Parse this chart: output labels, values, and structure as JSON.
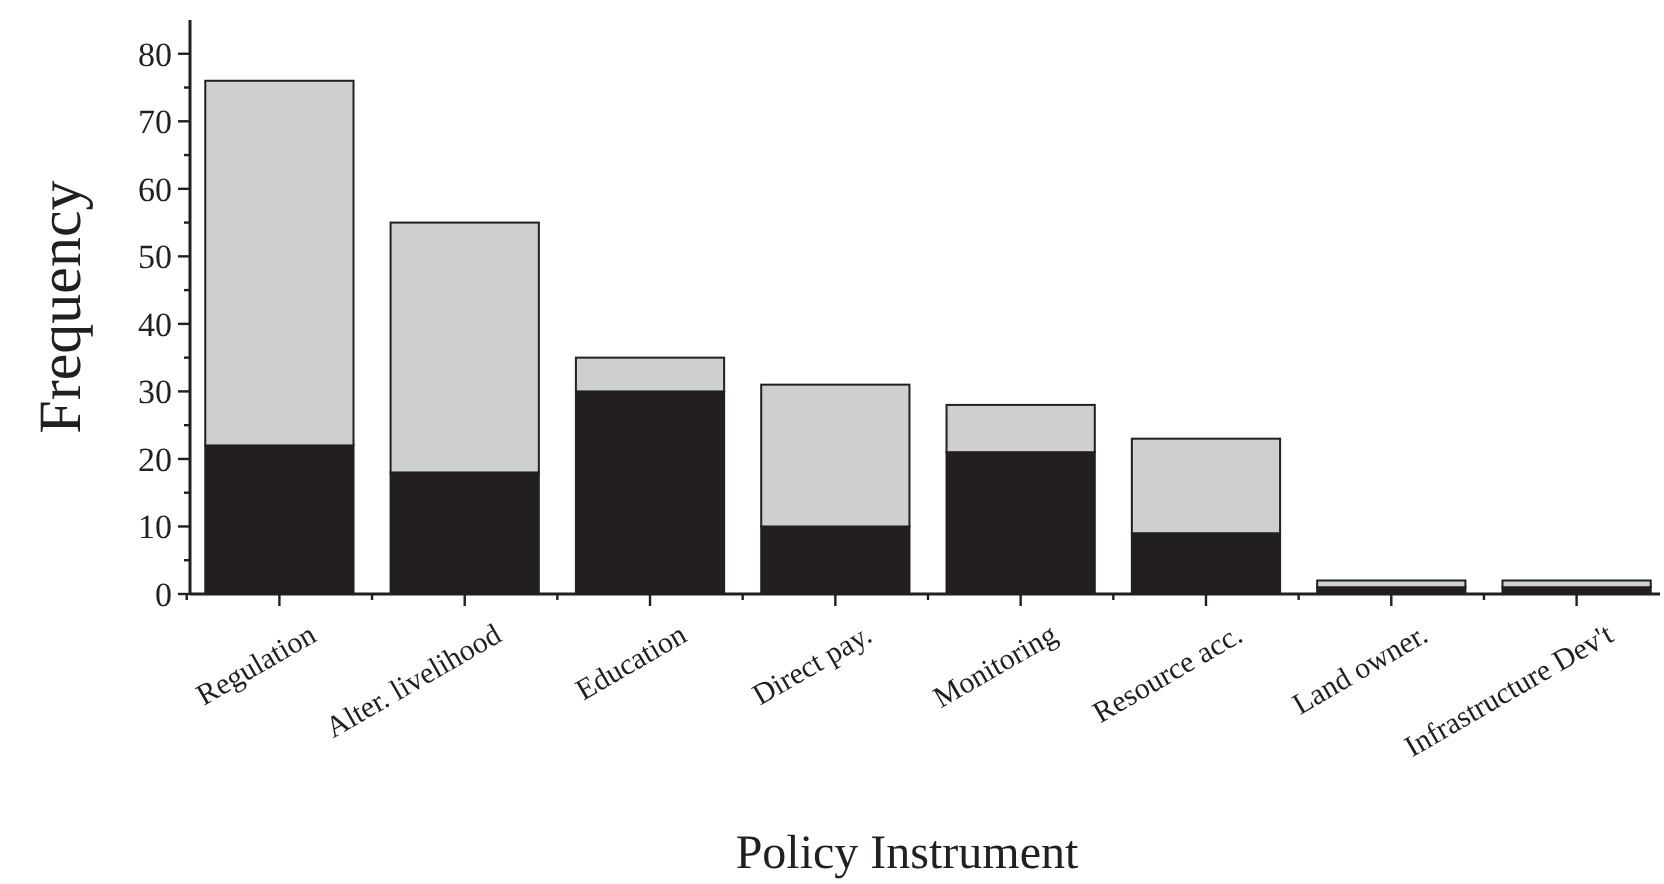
{
  "chart_data": {
    "type": "bar",
    "stacked": true,
    "xlabel": "Policy Instrument",
    "ylabel": "Frequency",
    "categories": [
      "Regulation",
      "Alter. livelihood",
      "Education",
      "Direct pay.",
      "Monitoring",
      "Resource acc.",
      "Land owner.",
      "Infrastructure Dev't"
    ],
    "series": [
      {
        "color": "#231f20",
        "values": [
          22,
          18,
          30,
          10,
          21,
          9,
          1,
          1
        ]
      },
      {
        "color": "#cdcfd1",
        "values": [
          54,
          37,
          5,
          21,
          7,
          14,
          1,
          1
        ]
      }
    ],
    "ylim": [
      0,
      85
    ],
    "yticks": [
      0,
      {
        "value": 5,
        "label": null
      },
      10,
      {
        "value": 15,
        "label": null
      },
      20,
      {
        "value": 25,
        "label": null
      },
      30,
      {
        "value": 35,
        "label": null
      },
      40,
      {
        "value": 45,
        "label": null
      },
      50,
      {
        "value": 55,
        "label": null
      },
      60,
      {
        "value": 65,
        "label": null
      },
      70,
      {
        "value": 75,
        "label": null
      },
      80
    ],
    "grid": false
  }
}
